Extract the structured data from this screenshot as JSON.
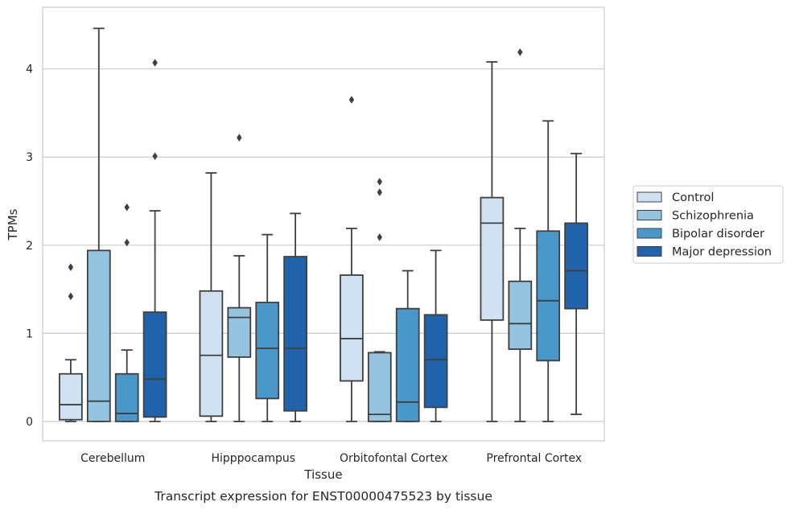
{
  "caption": "Transcript expression for ENST00000475523 by tissue",
  "chart_data": {
    "type": "box",
    "xlabel": "Tissue",
    "ylabel": "TPMs",
    "ylim": [
      -0.22,
      4.7
    ],
    "yticks": [
      0,
      1,
      2,
      3,
      4
    ],
    "grid": "horizontal",
    "legend_position": "right",
    "categories": [
      "Cerebellum",
      "Hipppocampus",
      "Orbitofontal Cortex",
      "Prefrontal Cortex"
    ],
    "series": [
      {
        "name": "Control",
        "color": "#d0e1f2",
        "boxes": [
          {
            "whisker_low": 0.0,
            "q1": 0.02,
            "median": 0.19,
            "q3": 0.54,
            "whisker_high": 0.7,
            "outliers": [
              1.42,
              1.75
            ]
          },
          {
            "whisker_low": 0.0,
            "q1": 0.06,
            "median": 0.75,
            "q3": 1.48,
            "whisker_high": 2.82,
            "outliers": []
          },
          {
            "whisker_low": 0.0,
            "q1": 0.46,
            "median": 0.94,
            "q3": 1.66,
            "whisker_high": 2.19,
            "outliers": [
              3.65
            ]
          },
          {
            "whisker_low": 0.0,
            "q1": 1.15,
            "median": 2.25,
            "q3": 2.54,
            "whisker_high": 4.08,
            "outliers": []
          }
        ]
      },
      {
        "name": "Schizophrenia",
        "color": "#94c4df",
        "boxes": [
          {
            "whisker_low": 0.0,
            "q1": 0.0,
            "median": 0.23,
            "q3": 1.94,
            "whisker_high": 4.46,
            "outliers": []
          },
          {
            "whisker_low": 0.0,
            "q1": 0.73,
            "median": 1.18,
            "q3": 1.29,
            "whisker_high": 1.88,
            "outliers": [
              3.22
            ]
          },
          {
            "whisker_low": 0.0,
            "q1": 0.0,
            "median": 0.08,
            "q3": 0.78,
            "whisker_high": 0.79,
            "outliers": [
              2.09,
              2.6,
              2.72
            ]
          },
          {
            "whisker_low": 0.0,
            "q1": 0.82,
            "median": 1.11,
            "q3": 1.59,
            "whisker_high": 2.19,
            "outliers": [
              4.19
            ]
          }
        ]
      },
      {
        "name": "Bipolar disorder",
        "color": "#4a98c9",
        "boxes": [
          {
            "whisker_low": 0.0,
            "q1": 0.0,
            "median": 0.09,
            "q3": 0.54,
            "whisker_high": 0.81,
            "outliers": [
              2.03,
              2.43
            ]
          },
          {
            "whisker_low": 0.0,
            "q1": 0.26,
            "median": 0.83,
            "q3": 1.35,
            "whisker_high": 2.12,
            "outliers": []
          },
          {
            "whisker_low": 0.0,
            "q1": 0.0,
            "median": 0.22,
            "q3": 1.28,
            "whisker_high": 1.71,
            "outliers": []
          },
          {
            "whisker_low": 0.0,
            "q1": 0.69,
            "median": 1.37,
            "q3": 2.16,
            "whisker_high": 3.41,
            "outliers": []
          }
        ]
      },
      {
        "name": "Major depression",
        "color": "#2163aa",
        "boxes": [
          {
            "whisker_low": 0.0,
            "q1": 0.05,
            "median": 0.48,
            "q3": 1.24,
            "whisker_high": 2.39,
            "outliers": [
              3.01,
              4.07
            ]
          },
          {
            "whisker_low": 0.0,
            "q1": 0.12,
            "median": 0.83,
            "q3": 1.87,
            "whisker_high": 2.36,
            "outliers": []
          },
          {
            "whisker_low": 0.0,
            "q1": 0.16,
            "median": 0.7,
            "q3": 1.21,
            "whisker_high": 1.94,
            "outliers": []
          },
          {
            "whisker_low": 0.08,
            "q1": 1.28,
            "median": 1.71,
            "q3": 2.25,
            "whisker_high": 3.04,
            "outliers": []
          }
        ]
      }
    ]
  }
}
